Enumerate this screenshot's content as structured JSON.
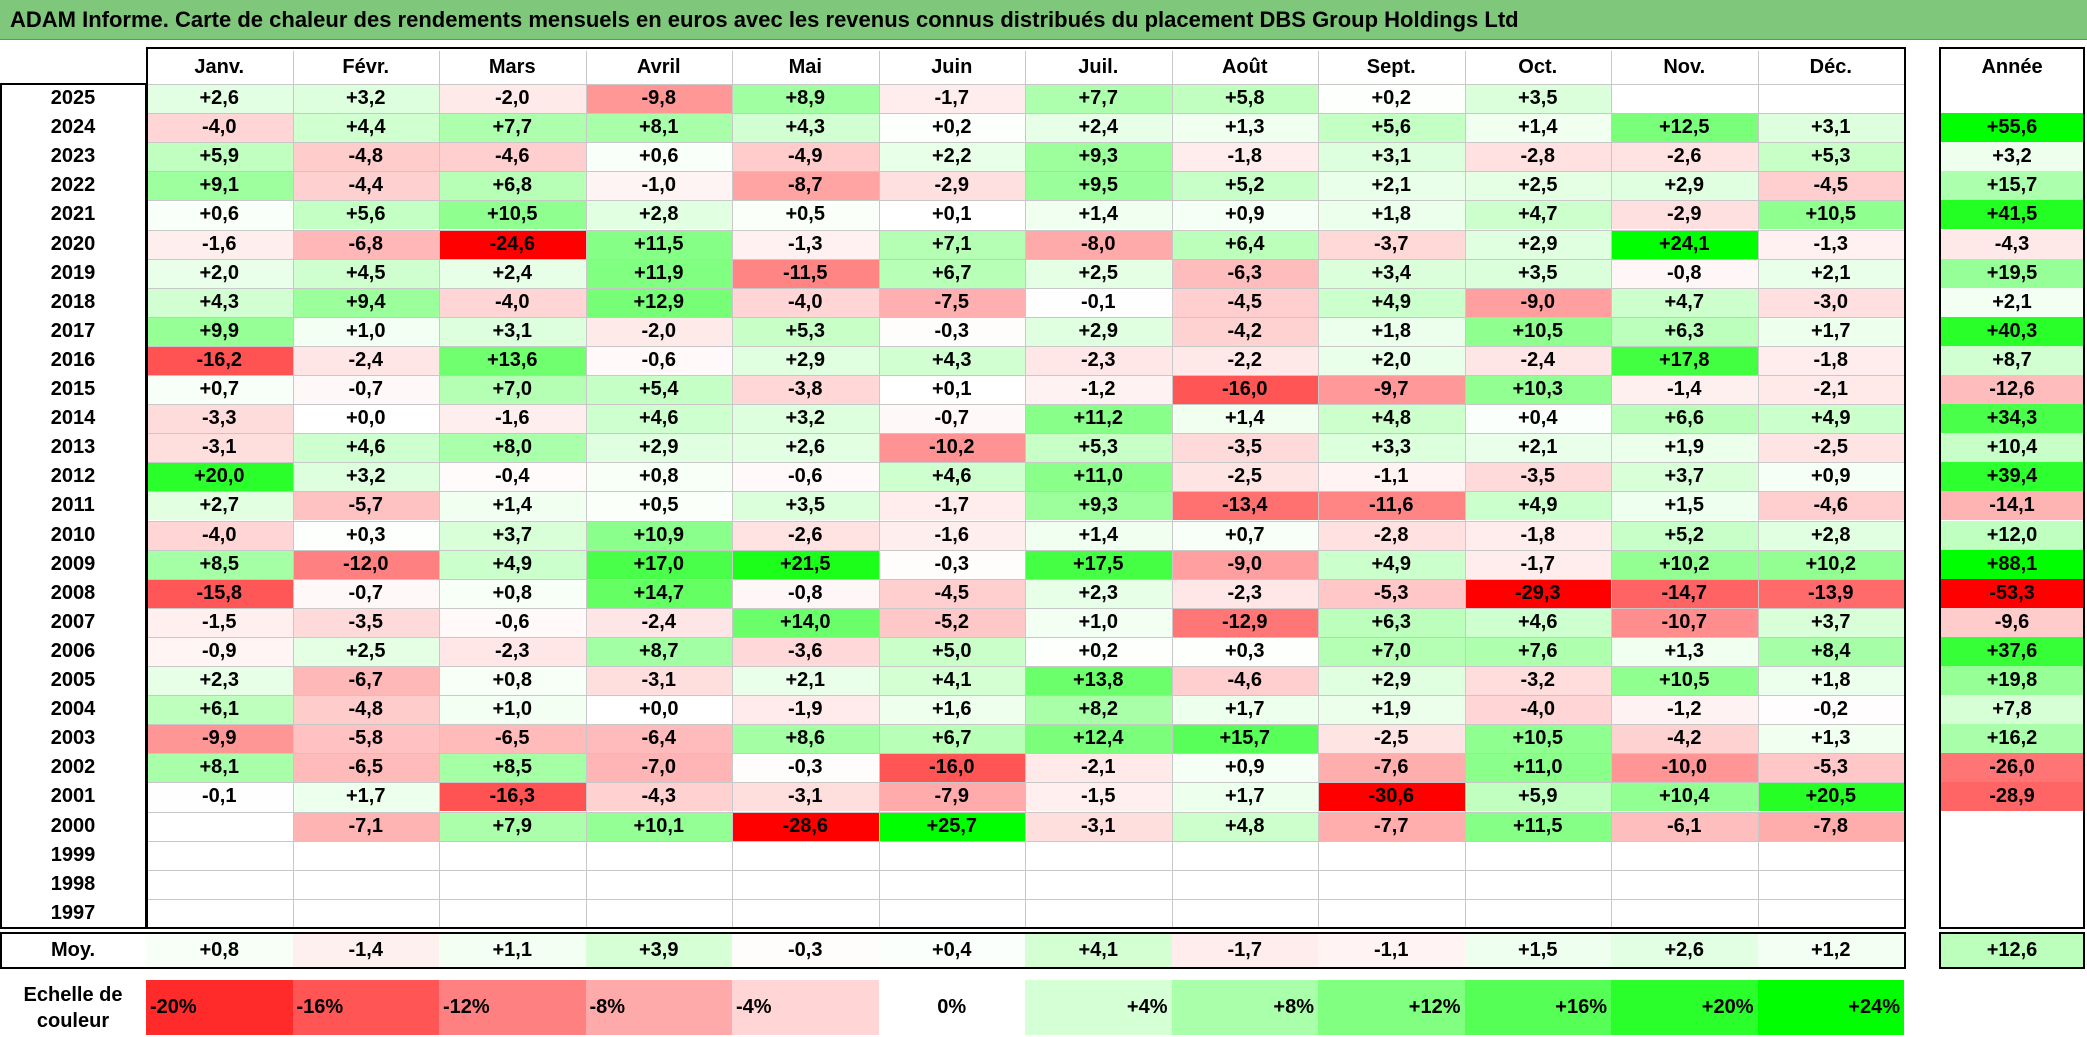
{
  "title": "ADAM Informe. Carte de chaleur des rendements mensuels en euros avec les revenus connus distribués du placement DBS Group Holdings Ltd",
  "chart_data": {
    "type": "heatmap",
    "title": "ADAM Informe. Carte de chaleur des rendements mensuels en euros avec les revenus connus distribués du placement DBS Group Holdings Ltd",
    "months": [
      "Janv.",
      "Févr.",
      "Mars",
      "Avril",
      "Mai",
      "Juin",
      "Juil.",
      "Août",
      "Sept.",
      "Oct.",
      "Nov.",
      "Déc."
    ],
    "year_header": "Année",
    "rows": [
      {
        "year": "2025",
        "values": [
          "+2,6",
          "+3,2",
          "-2,0",
          "-9,8",
          "+8,9",
          "-1,7",
          "+7,7",
          "+5,8",
          "+0,2",
          "+3,5",
          "",
          ""
        ],
        "annual": ""
      },
      {
        "year": "2024",
        "values": [
          "-4,0",
          "+4,4",
          "+7,7",
          "+8,1",
          "+4,3",
          "+0,2",
          "+2,4",
          "+1,3",
          "+5,6",
          "+1,4",
          "+12,5",
          "+3,1"
        ],
        "annual": "+55,6"
      },
      {
        "year": "2023",
        "values": [
          "+5,9",
          "-4,8",
          "-4,6",
          "+0,6",
          "-4,9",
          "+2,2",
          "+9,3",
          "-1,8",
          "+3,1",
          "-2,8",
          "-2,6",
          "+5,3"
        ],
        "annual": "+3,2"
      },
      {
        "year": "2022",
        "values": [
          "+9,1",
          "-4,4",
          "+6,8",
          "-1,0",
          "-8,7",
          "-2,9",
          "+9,5",
          "+5,2",
          "+2,1",
          "+2,5",
          "+2,9",
          "-4,5"
        ],
        "annual": "+15,7"
      },
      {
        "year": "2021",
        "values": [
          "+0,6",
          "+5,6",
          "+10,5",
          "+2,8",
          "+0,5",
          "+0,1",
          "+1,4",
          "+0,9",
          "+1,8",
          "+4,7",
          "-2,9",
          "+10,5"
        ],
        "annual": "+41,5"
      },
      {
        "year": "2020",
        "values": [
          "-1,6",
          "-6,8",
          "-24,6",
          "+11,5",
          "-1,3",
          "+7,1",
          "-8,0",
          "+6,4",
          "-3,7",
          "+2,9",
          "+24,1",
          "-1,3"
        ],
        "annual": "-4,3"
      },
      {
        "year": "2019",
        "values": [
          "+2,0",
          "+4,5",
          "+2,4",
          "+11,9",
          "-11,5",
          "+6,7",
          "+2,5",
          "-6,3",
          "+3,4",
          "+3,5",
          "-0,8",
          "+2,1"
        ],
        "annual": "+19,5"
      },
      {
        "year": "2018",
        "values": [
          "+4,3",
          "+9,4",
          "-4,0",
          "+12,9",
          "-4,0",
          "-7,5",
          "-0,1",
          "-4,5",
          "+4,9",
          "-9,0",
          "+4,7",
          "-3,0"
        ],
        "annual": "+2,1"
      },
      {
        "year": "2017",
        "values": [
          "+9,9",
          "+1,0",
          "+3,1",
          "-2,0",
          "+5,3",
          "-0,3",
          "+2,9",
          "-4,2",
          "+1,8",
          "+10,5",
          "+6,3",
          "+1,7"
        ],
        "annual": "+40,3"
      },
      {
        "year": "2016",
        "values": [
          "-16,2",
          "-2,4",
          "+13,6",
          "-0,6",
          "+2,9",
          "+4,3",
          "-2,3",
          "-2,2",
          "+2,0",
          "-2,4",
          "+17,8",
          "-1,8"
        ],
        "annual": "+8,7"
      },
      {
        "year": "2015",
        "values": [
          "+0,7",
          "-0,7",
          "+7,0",
          "+5,4",
          "-3,8",
          "+0,1",
          "-1,2",
          "-16,0",
          "-9,7",
          "+10,3",
          "-1,4",
          "-2,1"
        ],
        "annual": "-12,6"
      },
      {
        "year": "2014",
        "values": [
          "-3,3",
          "+0,0",
          "-1,6",
          "+4,6",
          "+3,2",
          "-0,7",
          "+11,2",
          "+1,4",
          "+4,8",
          "+0,4",
          "+6,6",
          "+4,9"
        ],
        "annual": "+34,3"
      },
      {
        "year": "2013",
        "values": [
          "-3,1",
          "+4,6",
          "+8,0",
          "+2,9",
          "+2,6",
          "-10,2",
          "+5,3",
          "-3,5",
          "+3,3",
          "+2,1",
          "+1,9",
          "-2,5"
        ],
        "annual": "+10,4"
      },
      {
        "year": "2012",
        "values": [
          "+20,0",
          "+3,2",
          "-0,4",
          "+0,8",
          "-0,6",
          "+4,6",
          "+11,0",
          "-2,5",
          "-1,1",
          "-3,5",
          "+3,7",
          "+0,9"
        ],
        "annual": "+39,4"
      },
      {
        "year": "2011",
        "values": [
          "+2,7",
          "-5,7",
          "+1,4",
          "+0,5",
          "+3,5",
          "-1,7",
          "+9,3",
          "-13,4",
          "-11,6",
          "+4,9",
          "+1,5",
          "-4,6"
        ],
        "annual": "-14,1"
      },
      {
        "year": "2010",
        "values": [
          "-4,0",
          "+0,3",
          "+3,7",
          "+10,9",
          "-2,6",
          "-1,6",
          "+1,4",
          "+0,7",
          "-2,8",
          "-1,8",
          "+5,2",
          "+2,8"
        ],
        "annual": "+12,0"
      },
      {
        "year": "2009",
        "values": [
          "+8,5",
          "-12,0",
          "+4,9",
          "+17,0",
          "+21,5",
          "-0,3",
          "+17,5",
          "-9,0",
          "+4,9",
          "-1,7",
          "+10,2",
          "+10,2"
        ],
        "annual": "+88,1"
      },
      {
        "year": "2008",
        "values": [
          "-15,8",
          "-0,7",
          "+0,8",
          "+14,7",
          "-0,8",
          "-4,5",
          "+2,3",
          "-2,3",
          "-5,3",
          "-29,3",
          "-14,7",
          "-13,9"
        ],
        "annual": "-53,3"
      },
      {
        "year": "2007",
        "values": [
          "-1,5",
          "-3,5",
          "-0,6",
          "-2,4",
          "+14,0",
          "-5,2",
          "+1,0",
          "-12,9",
          "+6,3",
          "+4,6",
          "-10,7",
          "+3,7"
        ],
        "annual": "-9,6"
      },
      {
        "year": "2006",
        "values": [
          "-0,9",
          "+2,5",
          "-2,3",
          "+8,7",
          "-3,6",
          "+5,0",
          "+0,2",
          "+0,3",
          "+7,0",
          "+7,6",
          "+1,3",
          "+8,4"
        ],
        "annual": "+37,6"
      },
      {
        "year": "2005",
        "values": [
          "+2,3",
          "-6,7",
          "+0,8",
          "-3,1",
          "+2,1",
          "+4,1",
          "+13,8",
          "-4,6",
          "+2,9",
          "-3,2",
          "+10,5",
          "+1,8"
        ],
        "annual": "+19,8"
      },
      {
        "year": "2004",
        "values": [
          "+6,1",
          "-4,8",
          "+1,0",
          "+0,0",
          "-1,9",
          "+1,6",
          "+8,2",
          "+1,7",
          "+1,9",
          "-4,0",
          "-1,2",
          "-0,2"
        ],
        "annual": "+7,8"
      },
      {
        "year": "2003",
        "values": [
          "-9,9",
          "-5,8",
          "-6,5",
          "-6,4",
          "+8,6",
          "+6,7",
          "+12,4",
          "+15,7",
          "-2,5",
          "+10,5",
          "-4,2",
          "+1,3"
        ],
        "annual": "+16,2"
      },
      {
        "year": "2002",
        "values": [
          "+8,1",
          "-6,5",
          "+8,5",
          "-7,0",
          "-0,3",
          "-16,0",
          "-2,1",
          "+0,9",
          "-7,6",
          "+11,0",
          "-10,0",
          "-5,3"
        ],
        "annual": "-26,0"
      },
      {
        "year": "2001",
        "values": [
          "-0,1",
          "+1,7",
          "-16,3",
          "-4,3",
          "-3,1",
          "-7,9",
          "-1,5",
          "+1,7",
          "-30,6",
          "+5,9",
          "+10,4",
          "+20,5"
        ],
        "annual": "-28,9"
      },
      {
        "year": "2000",
        "values": [
          "",
          "-7,1",
          "+7,9",
          "+10,1",
          "-28,6",
          "+25,7",
          "-3,1",
          "+4,8",
          "-7,7",
          "+11,5",
          "-6,1",
          "-7,8"
        ],
        "annual": ""
      },
      {
        "year": "1999",
        "values": [
          "",
          "",
          "",
          "",
          "",
          "",
          "",
          "",
          "",
          "",
          "",
          ""
        ],
        "annual": ""
      },
      {
        "year": "1998",
        "values": [
          "",
          "",
          "",
          "",
          "",
          "",
          "",
          "",
          "",
          "",
          "",
          ""
        ],
        "annual": ""
      },
      {
        "year": "1997",
        "values": [
          "",
          "",
          "",
          "",
          "",
          "",
          "",
          "",
          "",
          "",
          "",
          ""
        ],
        "annual": ""
      }
    ],
    "average": {
      "label": "Moy.",
      "values": [
        "+0,8",
        "-1,4",
        "+1,1",
        "+3,9",
        "-0,3",
        "+0,4",
        "+4,1",
        "-1,7",
        "-1,1",
        "+1,5",
        "+2,6",
        "+1,2"
      ],
      "annual": "+12,6"
    },
    "color_scale": {
      "label": "Echelle de couleur",
      "stops": [
        "-20%",
        "-16%",
        "-12%",
        "-8%",
        "-4%",
        "0%",
        "+4%",
        "+8%",
        "+12%",
        "+16%",
        "+20%",
        "+24%"
      ],
      "stop_values": [
        -20,
        -16,
        -12,
        -8,
        -4,
        0,
        4,
        8,
        12,
        16,
        20,
        24
      ],
      "negative_color": "#ff0000",
      "positive_color": "#00ff00",
      "neutral_color": "#ffffff"
    }
  }
}
